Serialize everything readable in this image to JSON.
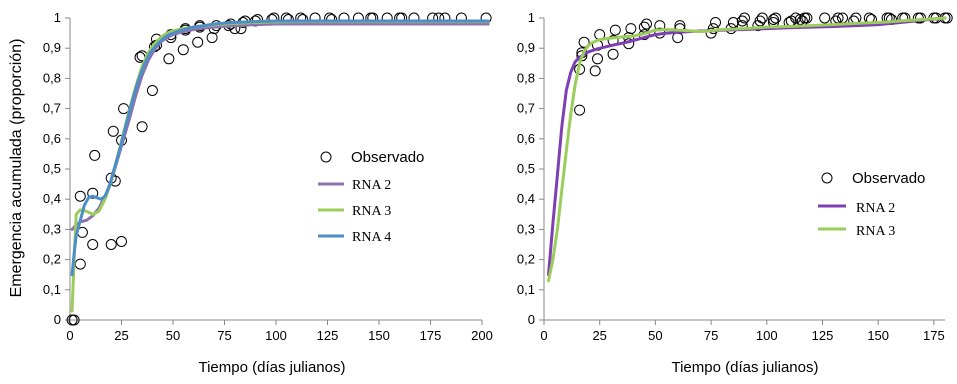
{
  "chart_data": [
    {
      "type": "scatter",
      "ylabel": "Emergencia acumulada (proporción)",
      "xlabel": "Tiempo (días julianos)",
      "xlim": [
        0,
        200
      ],
      "ylim": [
        0,
        1
      ],
      "xticks": [
        0,
        25,
        50,
        75,
        100,
        125,
        150,
        175,
        200
      ],
      "yticks": [
        "0",
        "0,1",
        "0,2",
        "0,3",
        "0,4",
        "0,5",
        "0,6",
        "0,7",
        "0,8",
        "0,9",
        "1"
      ],
      "grid": false,
      "legend_position": "center-right",
      "observed": {
        "name": "Observado",
        "x": [
          1,
          2,
          5,
          5,
          6,
          11,
          11,
          12,
          20,
          20,
          21,
          22,
          25,
          25,
          26,
          34,
          35,
          35,
          40,
          41,
          42,
          42,
          48,
          49,
          49,
          55,
          56,
          56,
          62,
          63,
          63,
          69,
          70,
          71,
          77,
          78,
          80,
          83,
          84,
          85,
          90,
          91,
          98,
          99,
          105,
          106,
          112,
          113,
          119,
          126,
          127,
          133,
          140,
          146,
          147,
          154,
          160,
          161,
          167,
          176,
          179,
          182,
          190,
          202
        ],
        "y": [
          0,
          0,
          0.185,
          0.41,
          0.29,
          0.25,
          0.42,
          0.545,
          0.25,
          0.47,
          0.625,
          0.46,
          0.26,
          0.595,
          0.7,
          0.87,
          0.875,
          0.64,
          0.76,
          0.905,
          0.93,
          0.91,
          0.865,
          0.935,
          0.945,
          0.895,
          0.965,
          0.96,
          0.92,
          0.97,
          0.975,
          0.935,
          0.965,
          0.975,
          0.975,
          0.98,
          0.965,
          0.965,
          0.985,
          0.99,
          0.99,
          0.995,
          0.995,
          1,
          1,
          0.995,
          1,
          0.995,
          1,
          1,
          0.995,
          1,
          1,
          1,
          1,
          1,
          1,
          1,
          1,
          1,
          1,
          1,
          1,
          1
        ]
      },
      "series": [
        {
          "name": "RNA 2",
          "color": "#8e72b0",
          "x": [
            1,
            3,
            5,
            8,
            11,
            14,
            17,
            20,
            23,
            26,
            29,
            32,
            35,
            38,
            41,
            44,
            47,
            50,
            55,
            60,
            65,
            70,
            75,
            80,
            90,
            100,
            110,
            125,
            150,
            175,
            203
          ],
          "y": [
            0.3,
            0.315,
            0.325,
            0.33,
            0.345,
            0.37,
            0.41,
            0.46,
            0.53,
            0.6,
            0.67,
            0.745,
            0.81,
            0.86,
            0.895,
            0.92,
            0.935,
            0.945,
            0.955,
            0.962,
            0.967,
            0.97,
            0.973,
            0.975,
            0.978,
            0.98,
            0.98,
            0.98,
            0.98,
            0.98,
            0.98
          ]
        },
        {
          "name": "RNA 3",
          "color": "#9acd5a",
          "x": [
            1,
            2,
            3,
            5,
            8,
            11,
            14,
            17,
            20,
            23,
            26,
            29,
            32,
            35,
            38,
            41,
            44,
            47,
            50,
            55,
            60,
            65,
            70,
            75,
            80,
            90,
            100,
            110,
            125,
            150,
            175,
            203
          ],
          "y": [
            0.03,
            0.2,
            0.35,
            0.365,
            0.36,
            0.35,
            0.36,
            0.4,
            0.46,
            0.54,
            0.62,
            0.7,
            0.775,
            0.84,
            0.885,
            0.915,
            0.935,
            0.95,
            0.958,
            0.965,
            0.97,
            0.974,
            0.977,
            0.98,
            0.982,
            0.985,
            0.987,
            0.988,
            0.988,
            0.988,
            0.988,
            0.988
          ]
        },
        {
          "name": "RNA 4",
          "color": "#4d8ec9",
          "x": [
            1,
            2,
            3,
            5,
            7,
            9,
            11,
            13,
            15,
            17,
            19,
            21,
            24,
            27,
            30,
            33,
            36,
            39,
            42,
            45,
            48,
            52,
            56,
            60,
            65,
            70,
            75,
            80,
            90,
            100,
            110,
            125,
            150,
            175,
            203
          ],
          "y": [
            0.15,
            0.22,
            0.28,
            0.33,
            0.38,
            0.405,
            0.41,
            0.405,
            0.4,
            0.41,
            0.44,
            0.49,
            0.56,
            0.64,
            0.72,
            0.79,
            0.845,
            0.885,
            0.91,
            0.93,
            0.945,
            0.955,
            0.963,
            0.97,
            0.975,
            0.98,
            0.983,
            0.985,
            0.988,
            0.99,
            0.99,
            0.99,
            0.99,
            0.99,
            0.99
          ]
        }
      ]
    },
    {
      "type": "scatter",
      "ylabel": "",
      "xlabel": "Tiempo (días julianos)",
      "xlim": [
        0,
        180
      ],
      "ylim": [
        0,
        1
      ],
      "xticks": [
        0,
        25,
        50,
        75,
        100,
        125,
        150,
        175
      ],
      "yticks": [
        "0",
        "0,1",
        "0,2",
        "0,3",
        "0,4",
        "0,5",
        "0,6",
        "0,7",
        "0,8",
        "0,9",
        "1"
      ],
      "grid": false,
      "legend_position": "center-right",
      "observed": {
        "name": "Observado",
        "x": [
          16,
          16,
          17,
          17,
          18,
          23,
          24,
          24,
          25,
          31,
          31,
          32,
          38,
          38,
          39,
          45,
          45,
          46,
          52,
          52,
          60,
          61,
          61,
          75,
          76,
          77,
          84,
          85,
          89,
          89,
          90,
          96,
          97,
          98,
          103,
          103,
          104,
          110,
          111,
          113,
          115,
          116,
          117,
          118,
          126,
          131,
          132,
          134,
          139,
          140,
          146,
          147,
          154,
          155,
          156,
          161,
          162,
          168,
          169,
          175,
          176,
          180,
          181
        ],
        "y": [
          0.695,
          0.83,
          0.875,
          0.885,
          0.92,
          0.825,
          0.865,
          0.91,
          0.945,
          0.88,
          0.925,
          0.96,
          0.915,
          0.935,
          0.965,
          0.945,
          0.97,
          0.98,
          0.95,
          0.975,
          0.935,
          0.965,
          0.975,
          0.95,
          0.965,
          0.985,
          0.965,
          0.985,
          0.975,
          0.99,
          1,
          0.975,
          0.99,
          1,
          0.985,
          0.995,
          1,
          0.985,
          0.99,
          1,
          0.995,
          0.99,
          1,
          1,
          1,
          0.99,
          1,
          1,
          0.99,
          1,
          1,
          0.995,
          1,
          1,
          0.995,
          1,
          1,
          1,
          1,
          1,
          1,
          1,
          1
        ]
      },
      "series": [
        {
          "name": "RNA 2",
          "color": "#7e3fb3",
          "x": [
            2,
            4,
            6,
            8,
            10,
            12,
            14,
            16,
            18,
            20,
            24,
            28,
            32,
            36,
            40,
            45,
            50,
            55,
            60,
            65,
            70,
            75,
            80,
            90,
            100,
            110,
            120,
            130,
            140,
            150,
            160,
            170,
            180
          ],
          "y": [
            0.15,
            0.32,
            0.48,
            0.64,
            0.76,
            0.82,
            0.855,
            0.87,
            0.88,
            0.888,
            0.898,
            0.905,
            0.912,
            0.918,
            0.925,
            0.935,
            0.945,
            0.95,
            0.953,
            0.955,
            0.957,
            0.958,
            0.96,
            0.962,
            0.965,
            0.968,
            0.97,
            0.972,
            0.975,
            0.978,
            0.985,
            0.993,
            1
          ]
        },
        {
          "name": "RNA 3",
          "color": "#9acd5a",
          "x": [
            2,
            4,
            6,
            8,
            10,
            12,
            14,
            16,
            18,
            20,
            22,
            25,
            28,
            32,
            36,
            40,
            45,
            50,
            55,
            60,
            65,
            70,
            75,
            80,
            90,
            100,
            110,
            120,
            130,
            140,
            150,
            160,
            170,
            180
          ],
          "y": [
            0.13,
            0.2,
            0.3,
            0.43,
            0.56,
            0.68,
            0.78,
            0.85,
            0.89,
            0.91,
            0.92,
            0.928,
            0.932,
            0.935,
            0.938,
            0.94,
            0.948,
            0.96,
            0.962,
            0.96,
            0.958,
            0.955,
            0.958,
            0.962,
            0.965,
            0.97,
            0.972,
            0.975,
            0.978,
            0.982,
            0.985,
            0.99,
            0.995,
            1
          ]
        }
      ]
    }
  ]
}
